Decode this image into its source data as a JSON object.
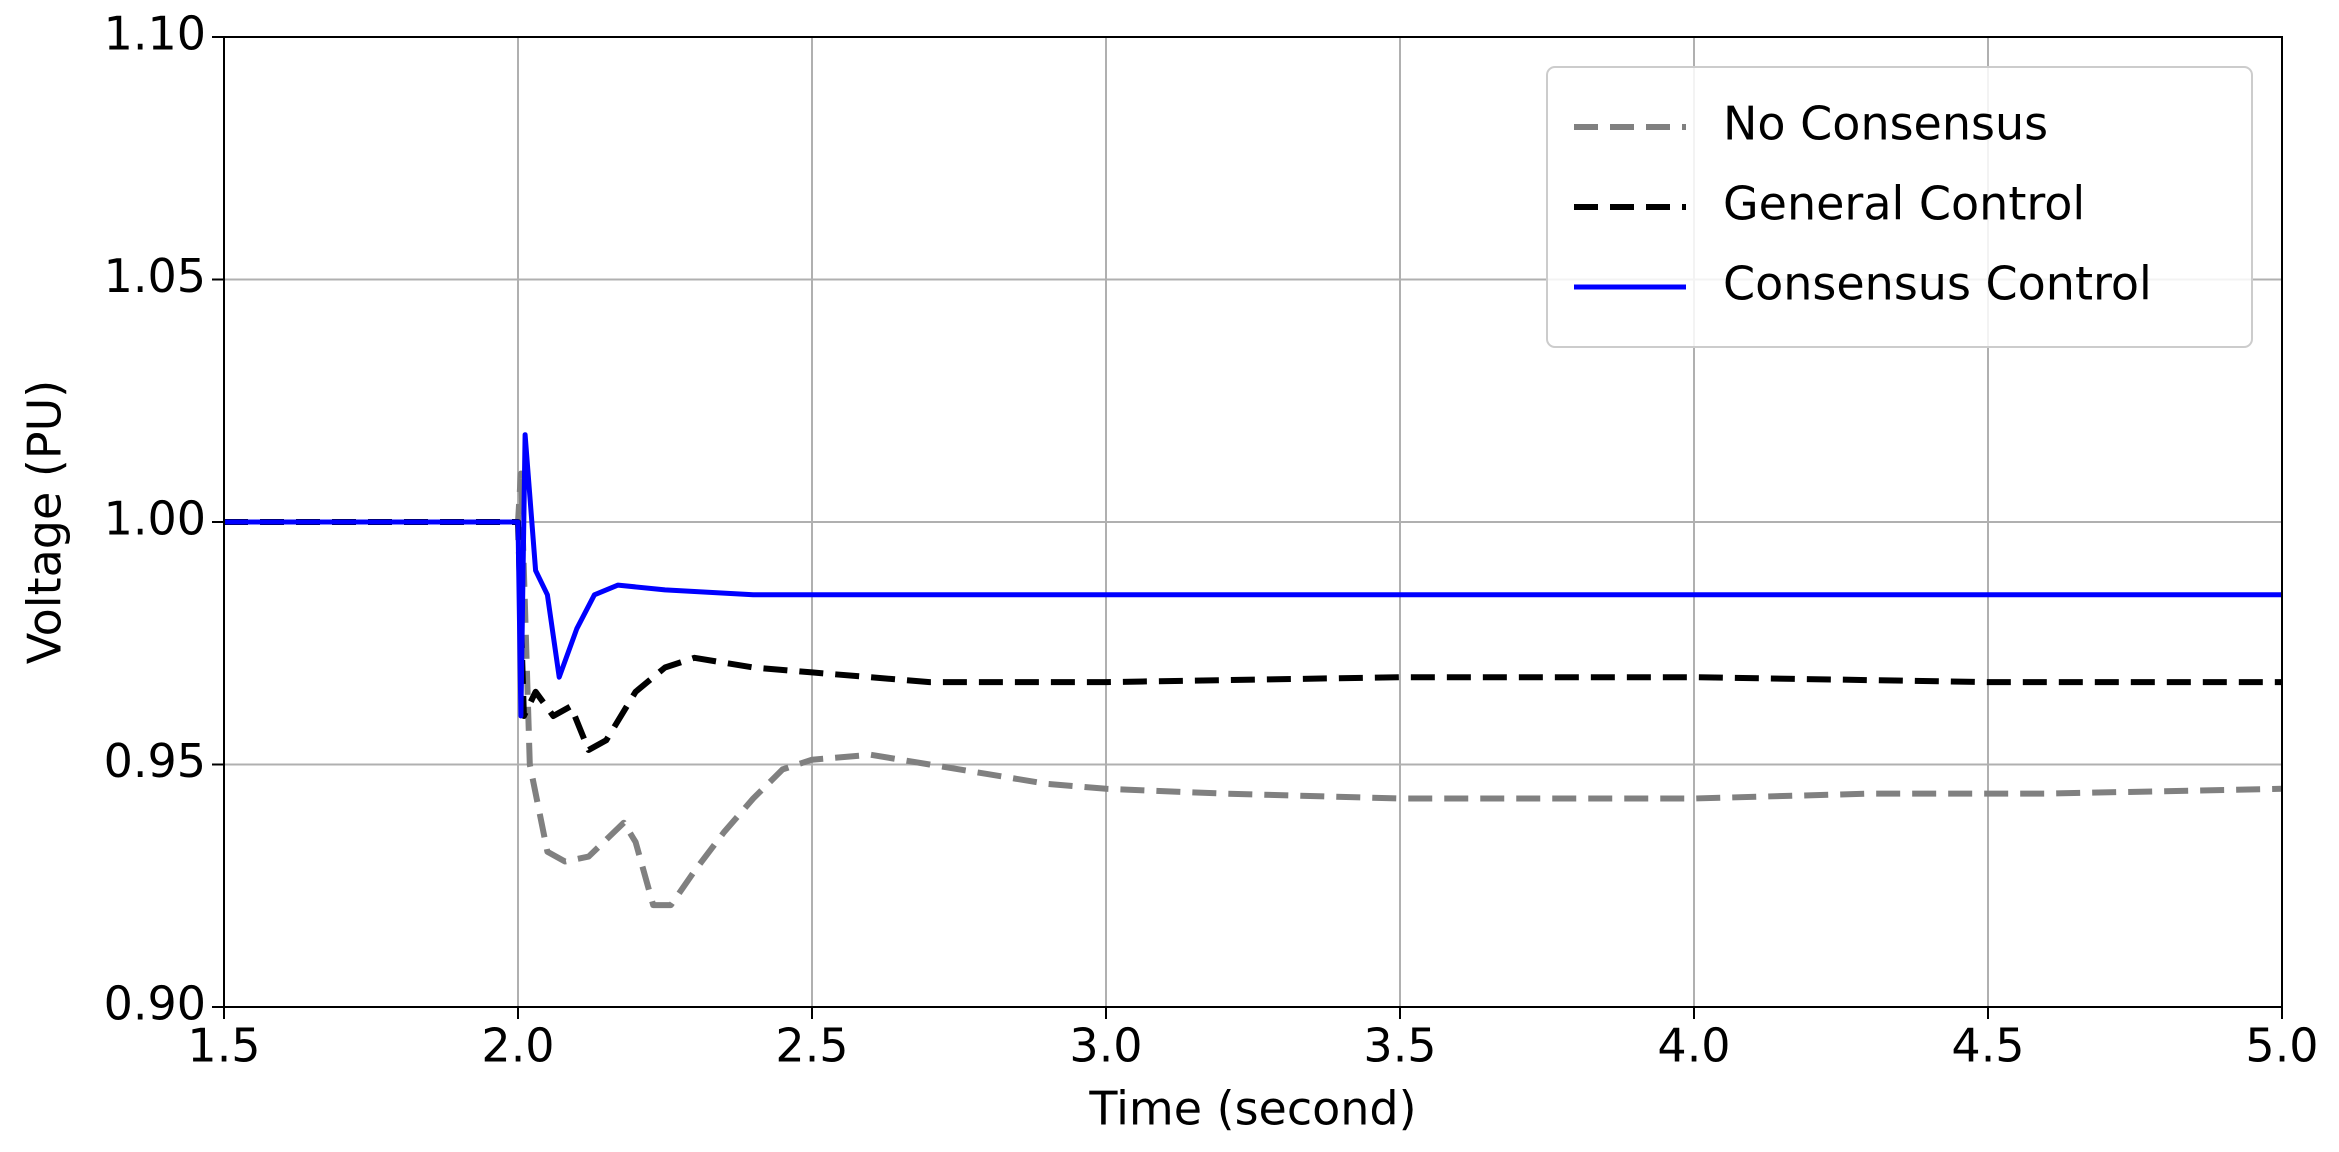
{
  "chart_data": {
    "type": "line",
    "x_label": "Time (second)",
    "y_label": "Voltage (PU)",
    "xlim": [
      1.5,
      5.0
    ],
    "xticks": [
      1.5,
      {
        "value": 2,
        "label": "2.0"
      },
      2.5,
      {
        "value": 3,
        "label": "3.0"
      },
      3.5,
      {
        "value": 4,
        "label": "4.0"
      },
      4.5,
      {
        "value": 5,
        "label": "5.0"
      }
    ],
    "ylim": [
      0.9,
      1.1
    ],
    "yticks": [
      {
        "value": 0.9,
        "label": "0.90"
      },
      0.95,
      {
        "value": 1,
        "label": "1.00"
      },
      1.05,
      {
        "value": 1.1,
        "label": "1.10"
      }
    ],
    "grid": true,
    "legend": "upper right",
    "series": [
      {
        "name": "No Consensus",
        "color": "#808080",
        "style": "dashed",
        "x": [
          1.5,
          2.0,
          2.005,
          2.02,
          2.05,
          2.08,
          2.12,
          2.18,
          2.2,
          2.23,
          2.26,
          2.3,
          2.35,
          2.4,
          2.45,
          2.5,
          2.6,
          2.7,
          2.8,
          2.9,
          3.0,
          3.2,
          3.5,
          3.8,
          4.0,
          4.3,
          4.6,
          5.0
        ],
        "values": [
          1.0,
          1.0,
          1.01,
          0.95,
          0.932,
          0.93,
          0.931,
          0.938,
          0.934,
          0.921,
          0.921,
          0.928,
          0.936,
          0.943,
          0.949,
          0.951,
          0.952,
          0.95,
          0.948,
          0.946,
          0.945,
          0.944,
          0.943,
          0.943,
          0.943,
          0.944,
          0.944,
          0.945
        ]
      },
      {
        "name": "General Control",
        "color": "#000000",
        "style": "dashed",
        "x": [
          1.5,
          2.0,
          2.01,
          2.03,
          2.06,
          2.09,
          2.12,
          2.15,
          2.2,
          2.25,
          2.3,
          2.4,
          2.5,
          2.7,
          3.0,
          3.5,
          4.0,
          4.5,
          5.0
        ],
        "values": [
          1.0,
          1.0,
          0.96,
          0.965,
          0.96,
          0.962,
          0.953,
          0.955,
          0.965,
          0.97,
          0.972,
          0.97,
          0.969,
          0.967,
          0.967,
          0.968,
          0.968,
          0.967,
          0.967
        ]
      },
      {
        "name": "Consensus Control",
        "color": "#0000ff",
        "style": "solid",
        "x": [
          1.5,
          2.0,
          2.005,
          2.012,
          2.03,
          2.05,
          2.07,
          2.1,
          2.13,
          2.17,
          2.25,
          2.4,
          3.0,
          4.0,
          4.5,
          5.0
        ],
        "values": [
          1.0,
          1.0,
          0.96,
          1.018,
          0.99,
          0.985,
          0.968,
          0.978,
          0.985,
          0.987,
          0.986,
          0.985,
          0.985,
          0.985,
          0.985,
          0.985
        ]
      }
    ]
  }
}
